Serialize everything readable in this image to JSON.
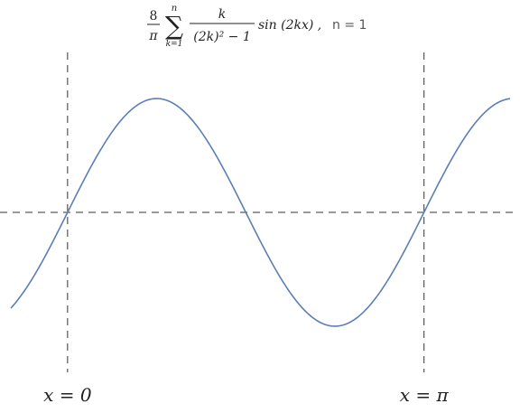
{
  "title": {
    "coefficient_num": "8",
    "coefficient_den": "π",
    "sum_upper": "n",
    "sum_lower": "k=1",
    "frac_num": "k",
    "frac_den": "(2k)² − 1",
    "func": "sin (2kx) ,",
    "param": "n = 1"
  },
  "chart_data": {
    "type": "line",
    "title": "8/π Σ_{k=1}^{n} k/((2k)² − 1) sin(2kx) , n = 1",
    "xlim": [
      -0.5,
      3.9
    ],
    "ylim": [
      -1.2,
      1.2
    ],
    "series": [
      {
        "color": "#5b7fb5",
        "expression": "(8/(3π))·sin(2x)",
        "x": [
          -0.5,
          -0.3,
          0.0,
          0.3,
          0.6,
          0.785,
          1.0,
          1.3,
          1.571,
          1.8,
          2.1,
          2.356,
          2.6,
          2.9,
          3.142,
          3.4,
          3.7,
          3.9
        ],
        "y": [
          -0.713,
          -0.479,
          0.0,
          0.479,
          0.79,
          0.849,
          0.772,
          0.438,
          0.0,
          -0.375,
          -0.737,
          -0.849,
          -0.755,
          -0.394,
          0.0,
          0.419,
          0.767,
          0.849
        ]
      }
    ],
    "reference_lines": {
      "horizontal": [
        0
      ],
      "vertical": [
        0,
        3.14159
      ]
    },
    "annotations": [
      "x = 0",
      "x = π"
    ],
    "grid": false,
    "legend": "none"
  }
}
